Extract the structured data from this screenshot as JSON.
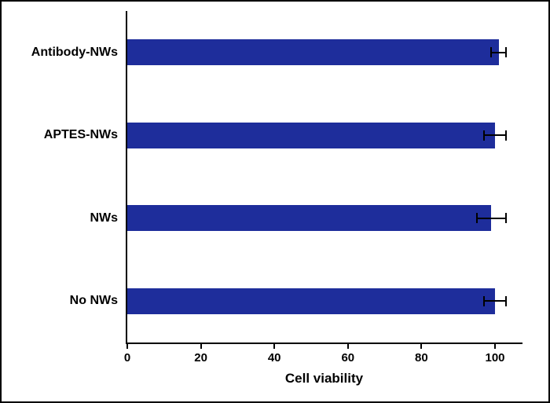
{
  "chart_data": {
    "type": "bar",
    "orientation": "horizontal",
    "title": "",
    "xlabel": "Cell viability",
    "ylabel": "",
    "categories": [
      "Antibody-NWs",
      "APTES-NWs",
      "NWs",
      "No NWs"
    ],
    "values": [
      101,
      100,
      99,
      100
    ],
    "errors": [
      2,
      3,
      4,
      3
    ],
    "xticks": [
      0,
      20,
      40,
      60,
      80,
      100
    ],
    "xlim": [
      0,
      108
    ],
    "grid": false,
    "legend": false,
    "bar_color": "#1e2d9b",
    "axis_color": "#000000",
    "background_color": "#ffffff"
  }
}
